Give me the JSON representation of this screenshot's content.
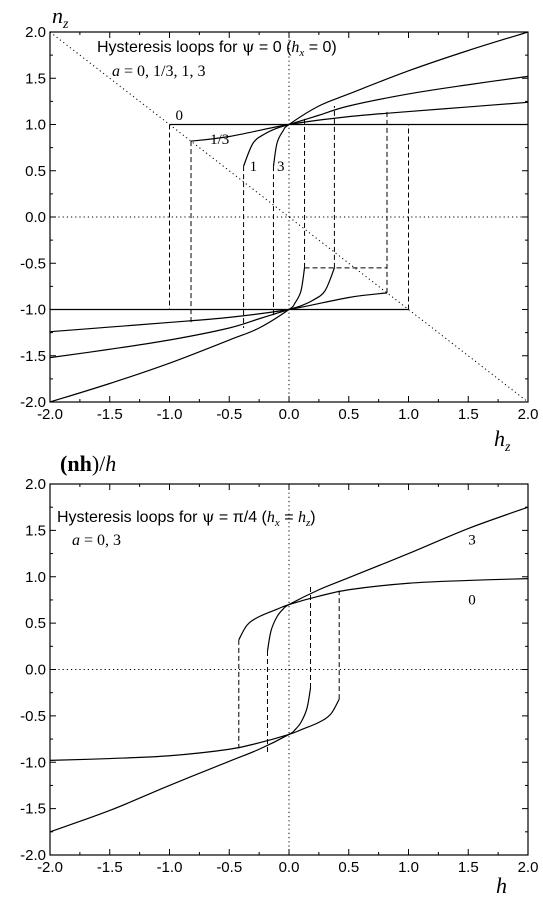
{
  "chart_data": [
    {
      "type": "line",
      "title": "Hysteresis loops for ψ = 0 (h_x = 0)",
      "title_parts": {
        "prefix": "Hysteresis loops for ",
        "psi": "ψ",
        "psi_value": " = 0 (",
        "hvar": "h",
        "hsub": "x",
        "hval": " = 0)"
      },
      "subtitle": "a = 0, 1/3, 1, 3",
      "subtitle_parts": {
        "var": "a",
        "values": " = 0, 1/3, 1, 3"
      },
      "ylabel": "n_z",
      "ylabel_parts": {
        "var": "n",
        "sub": "z"
      },
      "xlabel": "h_z",
      "xlabel_parts": {
        "var": "h",
        "sub": "z"
      },
      "xlim": [
        -2.0,
        2.0
      ],
      "ylim": [
        -2.0,
        2.0
      ],
      "x_ticks": [
        "-2.0",
        "-1.5",
        "-1.0",
        "-0.5",
        "0.0",
        "0.5",
        "1.0",
        "1.5",
        "2.0"
      ],
      "y_ticks": [
        "2.0",
        "1.5",
        "1.0",
        "0.5",
        "0.0",
        "-0.5",
        "-1.0",
        "-1.5",
        "-2.0"
      ],
      "curve_labels": [
        {
          "text": "0",
          "x": -0.95,
          "y": 1.05
        },
        {
          "text": "1/3",
          "x": -0.66,
          "y": 0.79
        },
        {
          "text": "1",
          "x": -0.33,
          "y": 0.5
        },
        {
          "text": "3",
          "x": -0.1,
          "y": 0.5
        }
      ],
      "series": [
        {
          "name": "0",
          "upper_branch": [
            [
              -1.0,
              1.0
            ],
            [
              2.0,
              1.0
            ]
          ],
          "lower_branch": [
            [
              -2.0,
              -1.0
            ],
            [
              1.0,
              -1.0
            ]
          ],
          "switch_up_x": 1.0,
          "switch_down_x": -1.0
        },
        {
          "name": "1/3",
          "upper_branch": [
            [
              -0.82,
              0.82
            ],
            [
              -0.5,
              0.87
            ],
            [
              0.0,
              1.0
            ],
            [
              0.5,
              1.085
            ],
            [
              1.0,
              1.14
            ],
            [
              1.5,
              1.19
            ],
            [
              2.0,
              1.24
            ]
          ],
          "lower_branch": [
            [
              -2.0,
              -1.24
            ],
            [
              -1.5,
              -1.19
            ],
            [
              -1.0,
              -1.14
            ],
            [
              -0.5,
              -1.085
            ],
            [
              0.0,
              -1.0
            ],
            [
              0.5,
              -0.87
            ],
            [
              0.82,
              -0.82
            ]
          ],
          "switch_up_x": 0.82,
          "switch_down_x": -0.82
        },
        {
          "name": "1",
          "upper_branch": [
            [
              -0.38,
              0.55
            ],
            [
              -0.3,
              0.8
            ],
            [
              -0.2,
              0.9
            ],
            [
              -0.1,
              0.96
            ],
            [
              0.0,
              1.0
            ],
            [
              0.25,
              1.1
            ],
            [
              0.5,
              1.2
            ],
            [
              1.0,
              1.33
            ],
            [
              1.5,
              1.43
            ],
            [
              2.0,
              1.52
            ]
          ],
          "lower_branch": [
            [
              -2.0,
              -1.52
            ],
            [
              -1.5,
              -1.43
            ],
            [
              -1.0,
              -1.33
            ],
            [
              -0.5,
              -1.2
            ],
            [
              -0.25,
              -1.1
            ],
            [
              0.0,
              -1.0
            ],
            [
              0.1,
              -0.96
            ],
            [
              0.2,
              -0.9
            ],
            [
              0.3,
              -0.8
            ],
            [
              0.38,
              -0.55
            ]
          ],
          "switch_up_x": 0.38,
          "switch_down_x": -0.38
        },
        {
          "name": "3",
          "upper_branch": [
            [
              -0.13,
              0.55
            ],
            [
              -0.1,
              0.8
            ],
            [
              -0.05,
              0.93
            ],
            [
              0.0,
              1.0
            ],
            [
              0.25,
              1.2
            ],
            [
              0.5,
              1.33
            ],
            [
              1.0,
              1.58
            ],
            [
              1.5,
              1.8
            ],
            [
              2.0,
              2.0
            ]
          ],
          "lower_branch": [
            [
              -2.0,
              -2.0
            ],
            [
              -1.5,
              -1.8
            ],
            [
              -1.0,
              -1.58
            ],
            [
              -0.5,
              -1.33
            ],
            [
              -0.25,
              -1.2
            ],
            [
              0.0,
              -1.0
            ],
            [
              0.05,
              -0.93
            ],
            [
              0.1,
              -0.8
            ],
            [
              0.13,
              -0.55
            ]
          ],
          "switch_up_x": 0.13,
          "switch_down_x": -0.13
        }
      ],
      "reference_lines": [
        {
          "style": "dotted",
          "points": [
            [
              -2.0,
              2.0
            ],
            [
              2.0,
              -2.0
            ]
          ]
        },
        {
          "style": "dotted",
          "points": [
            [
              -2.0,
              0.0
            ],
            [
              2.0,
              0.0
            ]
          ]
        },
        {
          "style": "dotted",
          "points": [
            [
              0.0,
              -2.0
            ],
            [
              0.0,
              2.0
            ]
          ]
        }
      ],
      "switch_segments": [
        {
          "x": -1.0,
          "y": [
            1.0,
            -1.0
          ]
        },
        {
          "x": 1.0,
          "y": [
            -1.0,
            1.0
          ]
        },
        {
          "x": -0.82,
          "y": [
            0.82,
            -1.14
          ]
        },
        {
          "x": 0.82,
          "y": [
            -0.82,
            1.14
          ]
        },
        {
          "x": -0.38,
          "y": [
            0.55,
            -1.2
          ]
        },
        {
          "x": 0.38,
          "y": [
            -0.55,
            1.2
          ]
        },
        {
          "x": -0.13,
          "y": [
            0.55,
            -1.07
          ]
        },
        {
          "x": 0.13,
          "y": [
            -0.55,
            1.07
          ]
        },
        {
          "x1": 0.13,
          "x2": 0.82,
          "y": -0.55
        }
      ]
    },
    {
      "type": "line",
      "title": "Hysteresis loops for ψ = π/4 (h_x = h_z)",
      "title_parts": {
        "prefix": "Hysteresis loops for ",
        "psi": "ψ",
        "psi_value": " = π/4 (",
        "hvar": "h",
        "hsub": "x",
        "hval": " = ",
        "hvar2": "h",
        "hsub2": "z",
        "hend": ")"
      },
      "subtitle": "a = 0, 3",
      "subtitle_parts": {
        "var": "a",
        "values": " = 0, 3"
      },
      "ylabel": "(nh)/h",
      "ylabel_parts": {
        "open": "(",
        "bold": "nh",
        "close": ")/",
        "var": "h"
      },
      "xlabel": "h",
      "xlabel_parts": {
        "var": "h"
      },
      "xlim": [
        -2.0,
        2.0
      ],
      "ylim": [
        -2.0,
        2.0
      ],
      "x_ticks": [
        "-2.0",
        "-1.5",
        "-1.0",
        "-0.5",
        "0.0",
        "0.5",
        "1.0",
        "1.5",
        "2.0"
      ],
      "y_ticks": [
        "2.0",
        "1.5",
        "1.0",
        "0.5",
        "0.0",
        "-0.5",
        "-1.0",
        "-1.5",
        "-2.0"
      ],
      "curve_labels": [
        {
          "text": "3",
          "x": 1.5,
          "y": 1.35
        },
        {
          "text": "0",
          "x": 1.5,
          "y": 0.7
        }
      ],
      "series": [
        {
          "name": "0",
          "upper_branch": [
            [
              -0.42,
              0.32
            ],
            [
              -0.35,
              0.48
            ],
            [
              -0.25,
              0.57
            ],
            [
              -0.1,
              0.65
            ],
            [
              0.0,
              0.7
            ],
            [
              0.25,
              0.79
            ],
            [
              0.5,
              0.86
            ],
            [
              1.0,
              0.93
            ],
            [
              1.5,
              0.96
            ],
            [
              2.0,
              0.98
            ]
          ],
          "lower_branch": [
            [
              -2.0,
              -0.98
            ],
            [
              -1.5,
              -0.96
            ],
            [
              -1.0,
              -0.93
            ],
            [
              -0.5,
              -0.86
            ],
            [
              -0.25,
              -0.79
            ],
            [
              0.0,
              -0.7
            ],
            [
              0.1,
              -0.65
            ],
            [
              0.25,
              -0.57
            ],
            [
              0.35,
              -0.48
            ],
            [
              0.42,
              -0.32
            ]
          ],
          "switch_up_x": 0.42,
          "switch_down_x": -0.42
        },
        {
          "name": "3",
          "upper_branch": [
            [
              -0.18,
              0.2
            ],
            [
              -0.15,
              0.42
            ],
            [
              -0.1,
              0.57
            ],
            [
              -0.05,
              0.65
            ],
            [
              0.0,
              0.7
            ],
            [
              0.25,
              0.86
            ],
            [
              0.5,
              0.99
            ],
            [
              1.0,
              1.25
            ],
            [
              1.5,
              1.52
            ],
            [
              2.0,
              1.75
            ]
          ],
          "lower_branch": [
            [
              -2.0,
              -1.75
            ],
            [
              -1.5,
              -1.52
            ],
            [
              -1.0,
              -1.25
            ],
            [
              -0.5,
              -0.99
            ],
            [
              -0.25,
              -0.86
            ],
            [
              0.0,
              -0.7
            ],
            [
              0.05,
              -0.65
            ],
            [
              0.1,
              -0.57
            ],
            [
              0.15,
              -0.42
            ],
            [
              0.18,
              -0.2
            ]
          ],
          "switch_up_x": 0.18,
          "switch_down_x": -0.18
        }
      ],
      "reference_lines": [
        {
          "style": "dotted",
          "points": [
            [
              -2.0,
              0.0
            ],
            [
              2.0,
              0.0
            ]
          ]
        },
        {
          "style": "dotted",
          "points": [
            [
              0.0,
              -2.0
            ],
            [
              0.0,
              2.0
            ]
          ]
        }
      ],
      "switch_segments": [
        {
          "x": -0.42,
          "y": [
            0.32,
            -0.85
          ]
        },
        {
          "x": 0.42,
          "y": [
            -0.32,
            0.85
          ]
        },
        {
          "x": -0.18,
          "y": [
            0.2,
            -0.89
          ]
        },
        {
          "x": 0.18,
          "y": [
            -0.2,
            0.89
          ]
        }
      ]
    }
  ]
}
